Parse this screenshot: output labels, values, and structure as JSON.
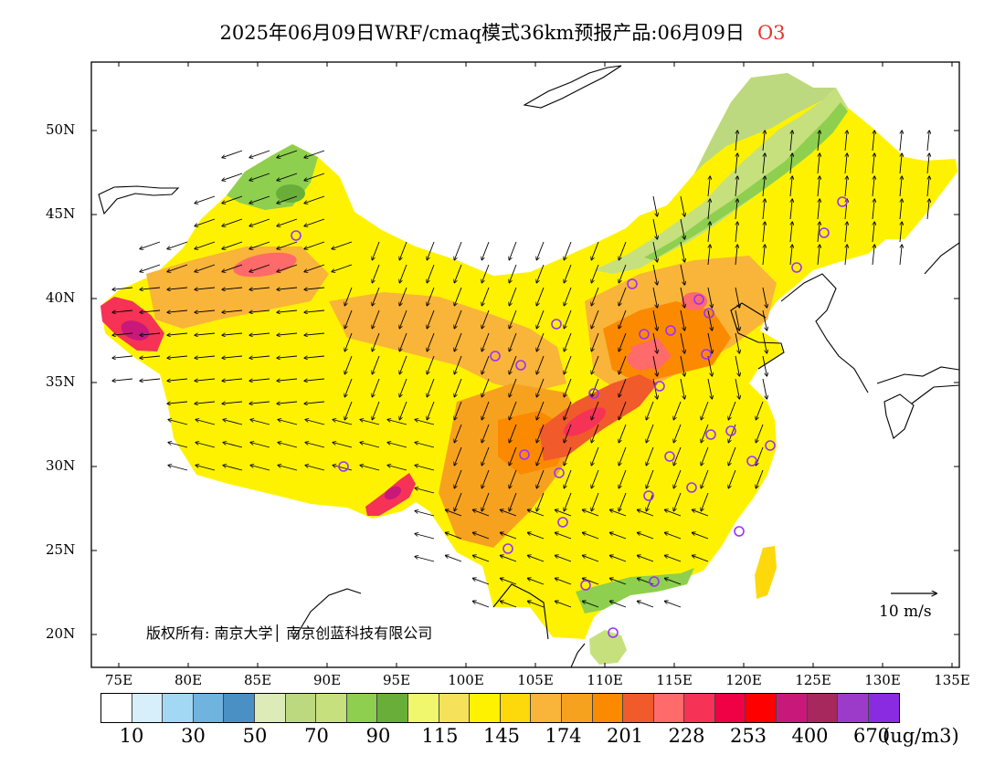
{
  "title": "2025年06月09日WRF/cmaq模式36km预报产品:06月09日",
  "pollutant": "O3",
  "x_axis_labels": [
    "75E",
    "80E",
    "85E",
    "90E",
    "95E",
    "100E",
    "105E",
    "110E",
    "115E",
    "120E",
    "125E",
    "130E",
    "135E"
  ],
  "y_axis_labels": [
    "50N",
    "45N",
    "40N",
    "35N",
    "30N",
    "25N",
    "20N"
  ],
  "copyright": "版权所有: 南京大学│ 南京创蓝科技有限公司",
  "wind_scale": {
    "label": "10 m/s"
  },
  "colorbar": {
    "colors": [
      "#ffffff",
      "#d7effb",
      "#a3d8f5",
      "#6fb3df",
      "#4a90c4",
      "#dcebb8",
      "#bcd97f",
      "#c6e07e",
      "#8ecf4f",
      "#6aae3a",
      "#f1f76d",
      "#f5e15a",
      "#fff200",
      "#fdd90c",
      "#f9b43a",
      "#f7a21f",
      "#fb8a00",
      "#f15a2b",
      "#ff6a6a",
      "#f63256",
      "#f00044",
      "#ff0000",
      "#c8197a",
      "#a7285d",
      "#9c3bca",
      "#8a2be2"
    ],
    "labels": [
      "10",
      "30",
      "50",
      "70",
      "90",
      "115",
      "145",
      "174",
      "201",
      "228",
      "253",
      "400",
      "670"
    ],
    "unit": "(ug/m3)"
  }
}
